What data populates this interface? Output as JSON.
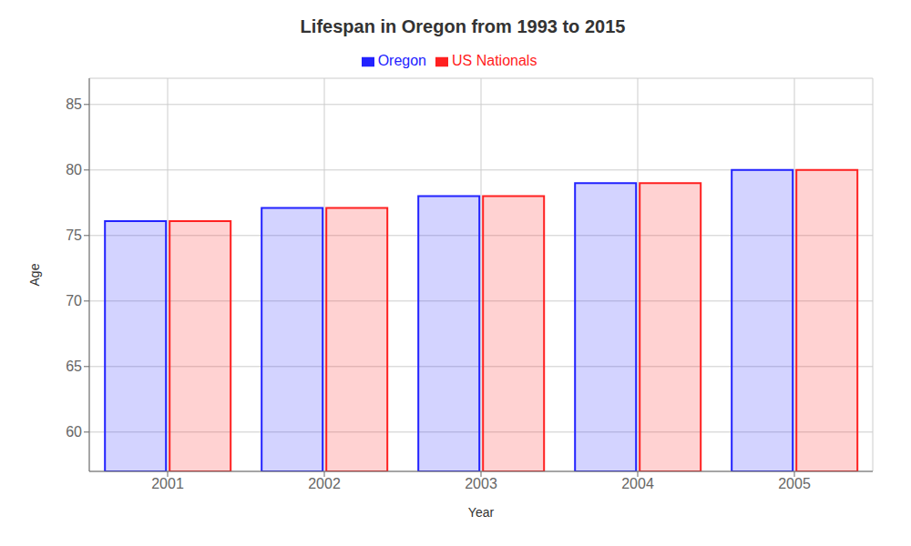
{
  "chart_data": {
    "type": "bar",
    "title": "Lifespan in Oregon from 1993 to 2015",
    "x_label": "Year",
    "y_label": "Age",
    "categories": [
      "2001",
      "2002",
      "2003",
      "2004",
      "2005"
    ],
    "series": [
      {
        "name": "Oregon",
        "color": "#2222ff",
        "values": [
          76.1,
          77.1,
          78.0,
          79.0,
          80.0
        ]
      },
      {
        "name": "US Nationals",
        "color": "#ff2020",
        "values": [
          76.1,
          77.1,
          78.0,
          79.0,
          80.0
        ]
      }
    ],
    "ylim": [
      57,
      87
    ],
    "yticks": [
      60,
      65,
      70,
      75,
      80,
      85
    ],
    "grid": true,
    "legend": "top"
  }
}
